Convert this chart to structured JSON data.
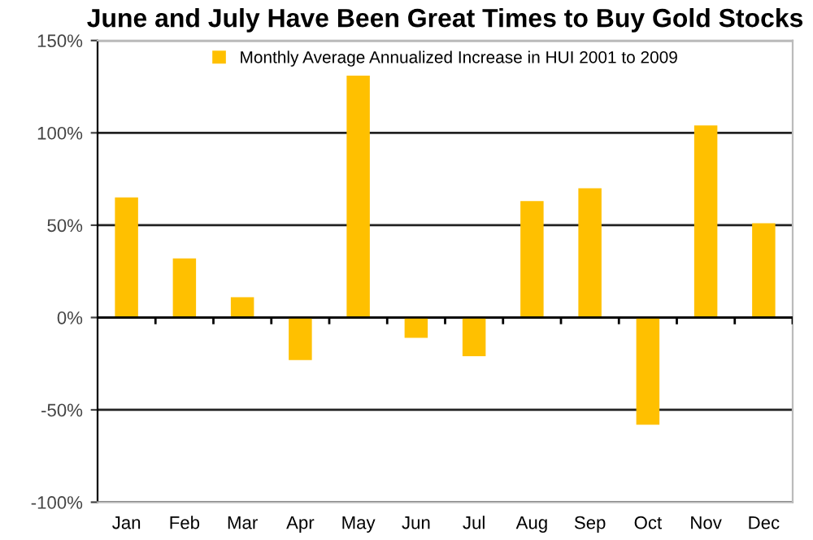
{
  "chart_data": {
    "type": "bar",
    "title": "June and July Have Been Great Times to Buy Gold Stocks",
    "categories": [
      "Jan",
      "Feb",
      "Mar",
      "Apr",
      "May",
      "Jun",
      "Jul",
      "Aug",
      "Sep",
      "Oct",
      "Nov",
      "Dec"
    ],
    "series": [
      {
        "name": "Monthly Average Annualized Increase in HUI 2001 to 2009",
        "color": "#ffc000",
        "values": [
          65,
          32,
          11,
          -23,
          131,
          -11,
          -21,
          63,
          70,
          -58,
          104,
          51
        ]
      }
    ],
    "ylim": [
      -100,
      150
    ],
    "yticks": [
      {
        "value": -100,
        "label": "-100%"
      },
      {
        "value": -50,
        "label": "-50%"
      },
      {
        "value": 0,
        "label": "0%"
      },
      {
        "value": 50,
        "label": "50%"
      },
      {
        "value": 100,
        "label": "100%"
      },
      {
        "value": 150,
        "label": "150%"
      }
    ],
    "grid": "y",
    "legend": "top"
  }
}
